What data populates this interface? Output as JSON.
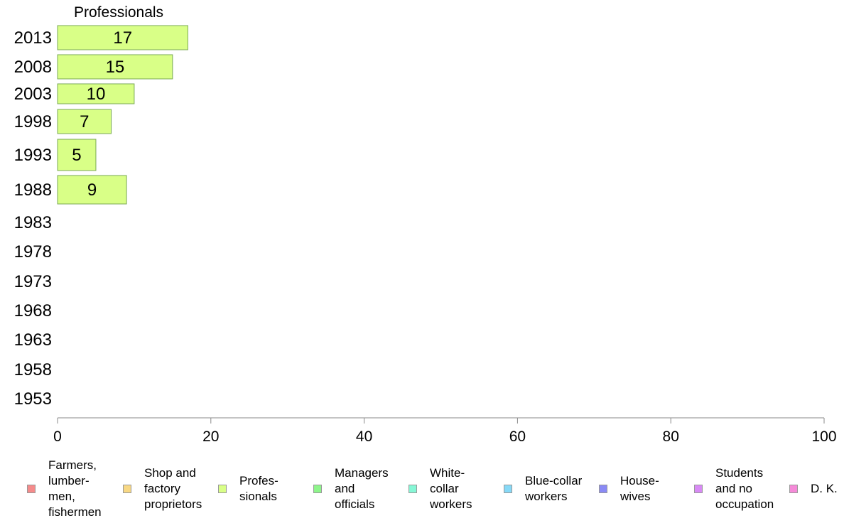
{
  "chart_data": {
    "type": "bar",
    "orientation": "horizontal",
    "title": "Professionals",
    "categories": [
      "2013",
      "2008",
      "2003",
      "1998",
      "1993",
      "1988",
      "1983",
      "1978",
      "1973",
      "1968",
      "1963",
      "1958",
      "1953"
    ],
    "series": [
      {
        "name": "Profes-\nsionals",
        "color": "#d9ff87",
        "values": [
          17,
          15,
          10,
          7,
          5,
          9,
          null,
          null,
          null,
          null,
          null,
          null,
          null
        ]
      }
    ],
    "xlim": [
      0,
      100
    ],
    "xticks": [
      0,
      20,
      40,
      60,
      80,
      100
    ],
    "xlabel": "",
    "ylabel": "",
    "grid": false,
    "legend_position": "bottom",
    "legend": [
      {
        "label": "Farmers,\nlumber-\nmen,\nfishermen",
        "color": "#f58b8b"
      },
      {
        "label": "Shop and\nfactory\nproprietors",
        "color": "#f8d884"
      },
      {
        "label": "Profes-\nsionals",
        "color": "#d9ff87"
      },
      {
        "label": "Managers\nand\nofficials",
        "color": "#8ef58b"
      },
      {
        "label": "White-\ncollar\nworkers",
        "color": "#86f7d6"
      },
      {
        "label": "Blue-collar\nworkers",
        "color": "#86d9f7"
      },
      {
        "label": "House-\nwives",
        "color": "#8a8af5"
      },
      {
        "label": "Students\nand no\noccupation",
        "color": "#d88af5"
      },
      {
        "label": "D. K.",
        "color": "#f58ad8"
      }
    ]
  }
}
